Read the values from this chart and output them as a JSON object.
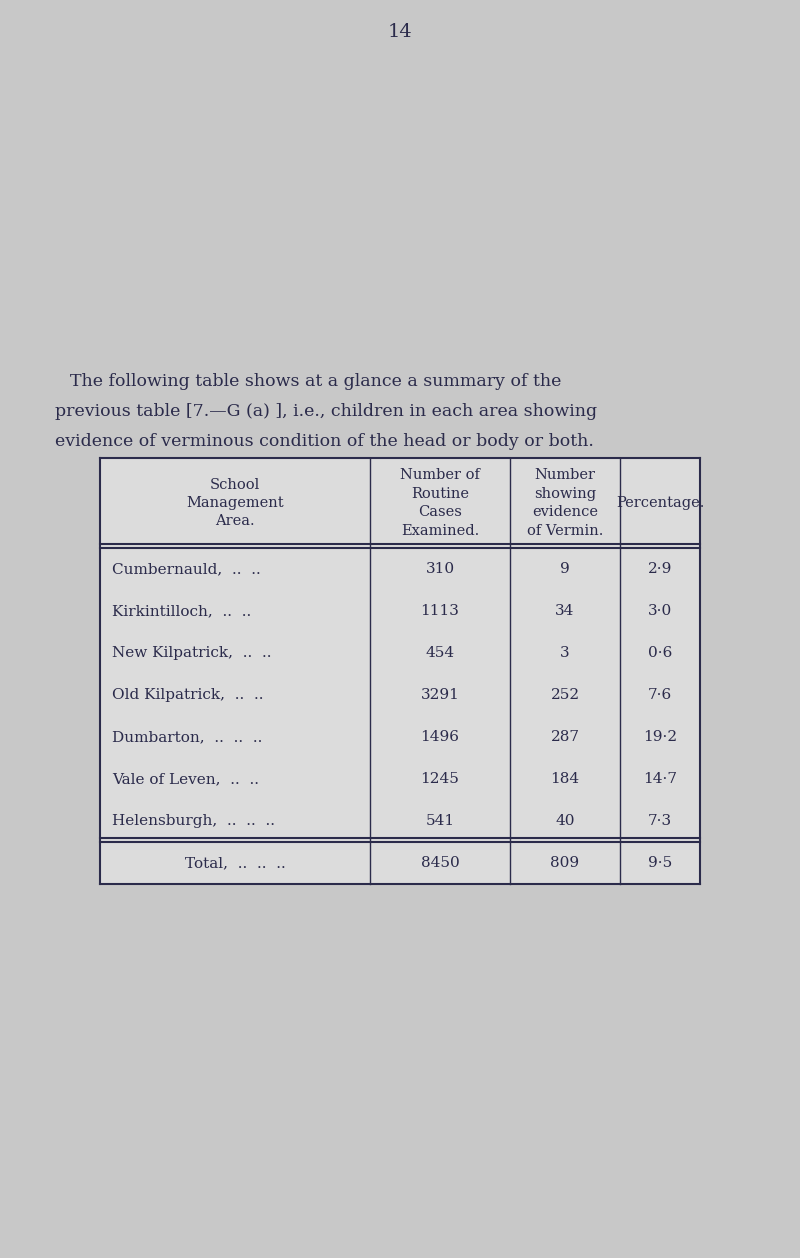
{
  "page_number": "14",
  "intro_text_line1": "The following table shows at a glance a summary of the",
  "intro_text_line2": "previous table [7.—G (a) ], i.e., children in each area showing",
  "intro_text_line3": "evidence of verminous condition of the head or body or both.",
  "col_headers": [
    "School\nManagement\nArea.",
    "Number of\nRoutine\nCases\nExamined.",
    "Number\nshowing\nevidence\nof Vermin.",
    "Percentage."
  ],
  "rows": [
    [
      "Cumbernauld,  ..  ..",
      "310",
      "9",
      "2·9"
    ],
    [
      "Kirkintilloch,  ..  ..",
      "1113",
      "34",
      "3·0"
    ],
    [
      "New Kilpatrick,  ..  ..",
      "454",
      "3",
      "0·6"
    ],
    [
      "Old Kilpatrick,  ..  ..",
      "3291",
      "252",
      "7·6"
    ],
    [
      "Dumbarton,  ..  ..  ..",
      "1496",
      "287",
      "19·2"
    ],
    [
      "Vale of Leven,  ..  ..",
      "1245",
      "184",
      "14·7"
    ],
    [
      "Helensburgh,  ..  ..  ..",
      "541",
      "40",
      "7·3"
    ]
  ],
  "total_row": [
    "Total,  ..  ..  ..",
    "8450",
    "809",
    "9·5"
  ],
  "bg_color": "#c8c8c8",
  "table_bg": "#dcdcdc",
  "text_color": "#2b2b4b",
  "border_color": "#2b2b4b",
  "font_size_intro": 12.5,
  "font_size_table": 11.0,
  "font_size_header": 10.5,
  "font_size_page": 14
}
